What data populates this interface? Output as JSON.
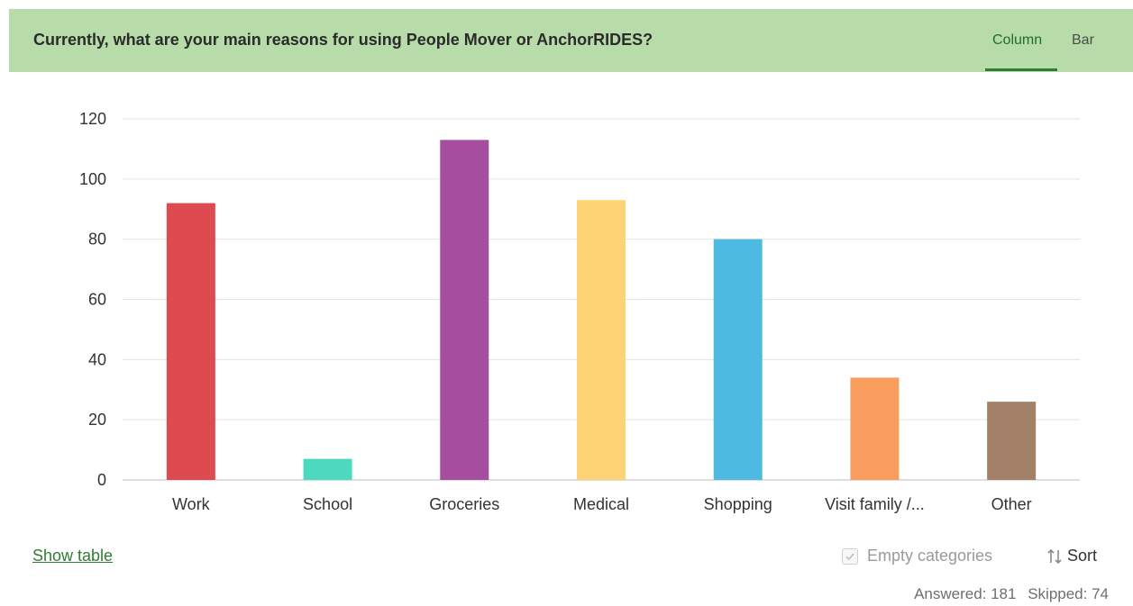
{
  "header": {
    "title": "Currently, what are your main reasons for using People Mover or AnchorRIDES?",
    "background": "#b8dbaa",
    "tabs": [
      {
        "label": "Column",
        "active": true
      },
      {
        "label": "Bar",
        "active": false
      }
    ]
  },
  "chart_data": {
    "type": "bar",
    "categories": [
      "Work",
      "School",
      "Groceries",
      "Medical",
      "Shopping",
      "Visit family /...",
      "Other"
    ],
    "values": [
      92,
      7,
      113,
      93,
      80,
      34,
      26
    ],
    "colors": [
      "#dd4b50",
      "#4dd8c0",
      "#a54ea0",
      "#fdd475",
      "#4dbbe1",
      "#f99d5f",
      "#a38169"
    ],
    "ylim": [
      0,
      120
    ],
    "yticks": [
      "0",
      "20",
      "40",
      "60",
      "80",
      "100",
      "120"
    ],
    "grid": true,
    "title": "",
    "xlabel": "",
    "ylabel": ""
  },
  "footer": {
    "show_table_label": "Show table",
    "empty_categories_label": "Empty categories",
    "empty_categories_checked": true,
    "sort_label": "Sort",
    "answered": "Answered: 181",
    "skipped": "Skipped: 74"
  }
}
